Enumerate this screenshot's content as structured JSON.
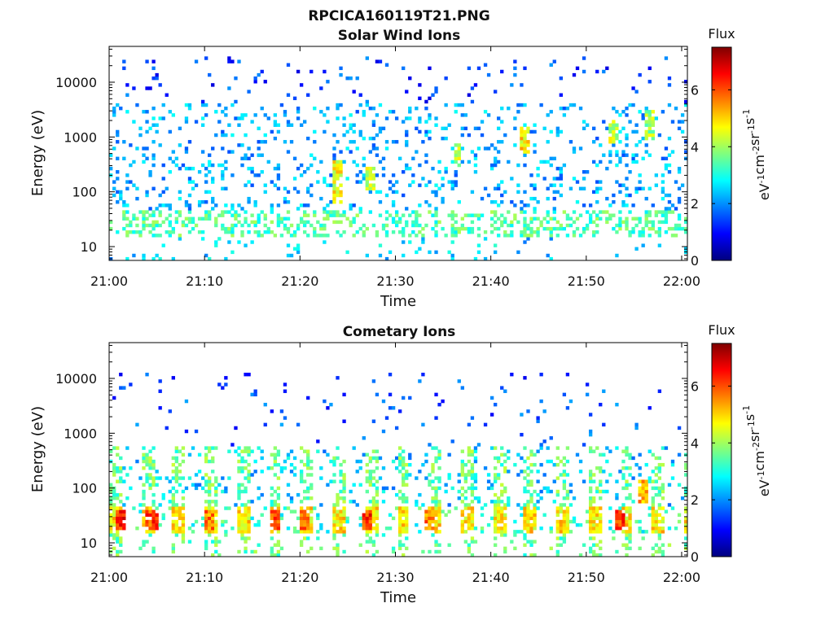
{
  "figure": {
    "file_title": "RPCICA160119T21.PNG"
  },
  "colorbar": {
    "colors": [
      "#00007f",
      "#0000ff",
      "#007fff",
      "#00ffff",
      "#7fff7f",
      "#ffff00",
      "#ff7f00",
      "#ff0000",
      "#7f0000"
    ]
  },
  "chart_data": [
    {
      "type": "heatmap",
      "title": "Solar Wind Ions",
      "xlabel": "Time",
      "ylabel": "Energy (eV)",
      "x_ticks": [
        "21:00",
        "21:10",
        "21:20",
        "21:30",
        "21:40",
        "21:50",
        "22:00"
      ],
      "x_tick_minutes": [
        0,
        10,
        20,
        30,
        40,
        50,
        60
      ],
      "xlim_minutes": [
        0,
        60.6
      ],
      "y_scale": "log",
      "y_ticks": [
        "10",
        "100",
        "1000",
        "10000"
      ],
      "y_tick_values": [
        10,
        100,
        1000,
        10000
      ],
      "ylim": [
        5.6,
        45000
      ],
      "colorbar_label": "Flux",
      "colorbar_units": "eV-1cm-2sr-1s-1",
      "colorbar_ticks": [
        "0",
        "2",
        "4",
        "6"
      ],
      "colorbar_tick_values": [
        0,
        2,
        4,
        6
      ],
      "colorbar_range": [
        0,
        7.5
      ],
      "grid": false,
      "low_band": {
        "energy_range": [
          17,
          42
        ],
        "flux_level": 3.4
      },
      "notable_bursts": [
        {
          "time_min": 24.0,
          "energy_range": [
            60,
            400
          ],
          "flux": 4.6
        },
        {
          "time_min": 27.5,
          "energy_range": [
            100,
            300
          ],
          "flux": 4.2
        },
        {
          "time_min": 36.5,
          "energy_range": [
            300,
            800
          ],
          "flux": 4.2
        },
        {
          "time_min": 43.5,
          "energy_range": [
            500,
            1500
          ],
          "flux": 4.8
        },
        {
          "time_min": 53.0,
          "energy_range": [
            800,
            2000
          ],
          "flux": 4.3
        },
        {
          "time_min": 56.5,
          "energy_range": [
            900,
            3000
          ],
          "flux": 4.0
        }
      ]
    },
    {
      "type": "heatmap",
      "title": "Cometary Ions",
      "xlabel": "Time",
      "ylabel": "Energy (eV)",
      "x_ticks": [
        "21:00",
        "21:10",
        "21:20",
        "21:30",
        "21:40",
        "21:50",
        "22:00"
      ],
      "x_tick_minutes": [
        0,
        10,
        20,
        30,
        40,
        50,
        60
      ],
      "xlim_minutes": [
        0,
        60.6
      ],
      "y_scale": "log",
      "y_ticks": [
        "10",
        "100",
        "1000",
        "10000"
      ],
      "y_tick_values": [
        10,
        100,
        1000,
        10000
      ],
      "ylim": [
        5.6,
        45000
      ],
      "colorbar_label": "Flux",
      "colorbar_units": "eV-1cm-2sr-1s-1",
      "colorbar_ticks": [
        "0",
        "2",
        "4",
        "6"
      ],
      "colorbar_tick_values": [
        0,
        2,
        4,
        6
      ],
      "colorbar_range": [
        0,
        7.5
      ],
      "grid": false,
      "burst_period_min": 3.35,
      "burst_peak_flux": 6.3,
      "burst_energy_range": [
        17,
        42
      ],
      "notable_bursts": [
        {
          "time_min": 1.2,
          "energy_range": [
            17,
            42
          ],
          "flux": 6.3
        },
        {
          "time_min": 4.5,
          "energy_range": [
            17,
            42
          ],
          "flux": 6.0
        },
        {
          "time_min": 10.5,
          "energy_range": [
            17,
            42
          ],
          "flux": 5.6
        },
        {
          "time_min": 17.5,
          "energy_range": [
            17,
            42
          ],
          "flux": 6.0
        },
        {
          "time_min": 20.5,
          "energy_range": [
            17,
            42
          ],
          "flux": 5.8
        },
        {
          "time_min": 27.0,
          "energy_range": [
            17,
            42
          ],
          "flux": 6.2
        },
        {
          "time_min": 33.5,
          "energy_range": [
            17,
            42
          ],
          "flux": 5.6
        },
        {
          "time_min": 53.5,
          "energy_range": [
            17,
            42
          ],
          "flux": 6.3
        },
        {
          "time_min": 56.0,
          "energy_range": [
            50,
            150
          ],
          "flux": 5.2
        }
      ]
    }
  ]
}
